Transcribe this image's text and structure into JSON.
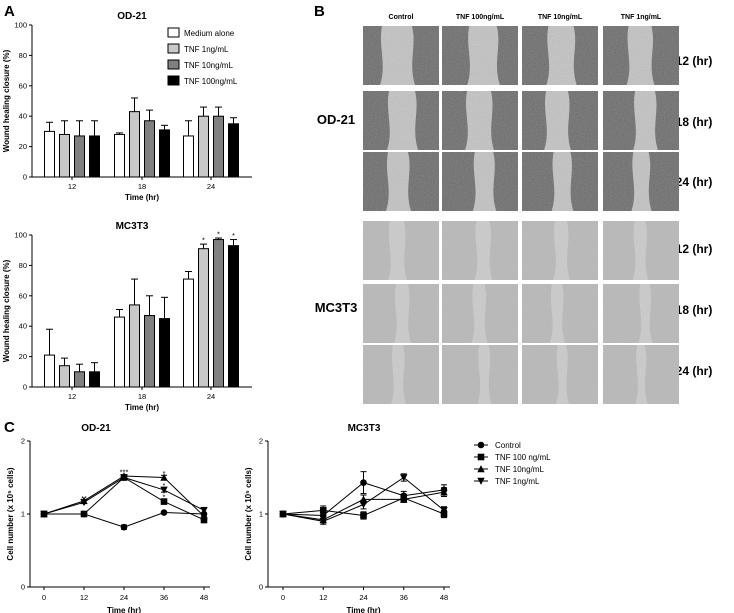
{
  "panels": {
    "a": "A",
    "b": "B",
    "c": "C"
  },
  "chart_data": [
    {
      "id": "a1",
      "type": "bar",
      "title": "OD-21",
      "xlabel": "Time (hr)",
      "ylabel": "Wound healing closure (%)",
      "ylim": [
        0,
        100
      ],
      "yticks": [
        0,
        20,
        40,
        60,
        80,
        100
      ],
      "categories": [
        "12",
        "18",
        "24"
      ],
      "series": [
        {
          "name": "Medium alone",
          "color": "#ffffff",
          "values": [
            30,
            28,
            27
          ],
          "err": [
            6,
            1,
            10
          ],
          "sig": [
            "",
            "",
            ""
          ]
        },
        {
          "name": "TNF 1ng/mL",
          "color": "#c8c8c8",
          "values": [
            28,
            43,
            40
          ],
          "err": [
            9,
            9,
            6
          ],
          "sig": [
            "",
            "",
            ""
          ]
        },
        {
          "name": "TNF 10ng/mL",
          "color": "#808080",
          "values": [
            27,
            37,
            40
          ],
          "err": [
            10,
            7,
            6
          ],
          "sig": [
            "",
            "",
            ""
          ]
        },
        {
          "name": "TNF 100ng/mL",
          "color": "#000000",
          "values": [
            27,
            31,
            35
          ],
          "err": [
            10,
            3,
            4
          ],
          "sig": [
            "",
            "",
            ""
          ]
        }
      ],
      "legend": "top-right"
    },
    {
      "id": "a2",
      "type": "bar",
      "title": "MC3T3",
      "xlabel": "Time (hr)",
      "ylabel": "Wound healing closure (%)",
      "ylim": [
        0,
        100
      ],
      "yticks": [
        0,
        20,
        40,
        60,
        80,
        100
      ],
      "categories": [
        "12",
        "18",
        "24"
      ],
      "series": [
        {
          "name": "Medium alone",
          "color": "#ffffff",
          "values": [
            21,
            46,
            71
          ],
          "err": [
            17,
            5,
            5
          ],
          "sig": [
            "",
            "",
            ""
          ]
        },
        {
          "name": "TNF 1ng/mL",
          "color": "#c8c8c8",
          "values": [
            14,
            54,
            91
          ],
          "err": [
            5,
            17,
            3
          ],
          "sig": [
            "",
            "",
            "*"
          ]
        },
        {
          "name": "TNF 10ng/mL",
          "color": "#808080",
          "values": [
            10,
            47,
            97
          ],
          "err": [
            5,
            13,
            1
          ],
          "sig": [
            "",
            "",
            "*"
          ]
        },
        {
          "name": "TNF 100ng/mL",
          "color": "#000000",
          "values": [
            10,
            45,
            93
          ],
          "err": [
            6,
            14,
            4
          ],
          "sig": [
            "",
            "",
            "*"
          ]
        }
      ]
    },
    {
      "id": "c1",
      "type": "line",
      "title": "OD-21",
      "xlabel": "Time (hr)",
      "ylabel": "Cell number (x 10⁵ cells)",
      "x": [
        0,
        12,
        24,
        36,
        48
      ],
      "ylim": [
        0,
        2
      ],
      "yticks": [
        0,
        1,
        2
      ],
      "series": [
        {
          "name": "Control",
          "marker": "circle",
          "values": [
            1.0,
            1.0,
            0.82,
            1.02,
            1.0
          ],
          "err": [
            0,
            0,
            0.03,
            0,
            0
          ]
        },
        {
          "name": "TNF 100 ng/mL",
          "marker": "square",
          "values": [
            1.0,
            1.0,
            1.5,
            1.17,
            0.92
          ],
          "err": [
            0,
            0,
            0,
            0.03,
            0.04
          ]
        },
        {
          "name": "TNF 10ng/mL",
          "marker": "triangle-up",
          "values": [
            1.0,
            1.18,
            1.52,
            1.5,
            0.97
          ],
          "err": [
            0,
            0,
            0,
            0.03,
            0
          ]
        },
        {
          "name": "TNF 1ng/mL",
          "marker": "triangle-down",
          "values": [
            1.0,
            1.16,
            1.5,
            1.33,
            1.05
          ],
          "err": [
            0,
            0,
            0,
            0.03,
            0.04
          ]
        }
      ],
      "annotations": [
        {
          "x": 12,
          "y": 1.22,
          "text": "**"
        },
        {
          "x": 24,
          "y": 1.58,
          "text": "***"
        },
        {
          "x": 36,
          "y": 1.56,
          "text": "*"
        },
        {
          "x": 36,
          "y": 1.4,
          "text": "*"
        },
        {
          "x": 36,
          "y": 1.24,
          "text": "*"
        }
      ]
    },
    {
      "id": "c2",
      "type": "line",
      "title": "MC3T3",
      "xlabel": "Time (hr)",
      "ylabel": "Cell number (x 10⁵ cells)",
      "x": [
        0,
        12,
        24,
        36,
        48
      ],
      "ylim": [
        0,
        2
      ],
      "yticks": [
        0,
        1,
        2
      ],
      "series": [
        {
          "name": "Control",
          "marker": "circle",
          "values": [
            1.0,
            0.98,
            1.43,
            1.25,
            1.33
          ],
          "err": [
            0,
            0.05,
            0.15,
            0.06,
            0.07
          ]
        },
        {
          "name": "TNF 100 ng/mL",
          "marker": "square",
          "values": [
            1.0,
            1.05,
            0.98,
            1.22,
            1.0
          ],
          "err": [
            0,
            0.06,
            0.05,
            0.05,
            0.05
          ]
        },
        {
          "name": "TNF 10ng/mL",
          "marker": "triangle-up",
          "values": [
            1.0,
            0.92,
            1.2,
            1.2,
            1.3
          ],
          "err": [
            0,
            0.04,
            0.06,
            0.04,
            0.06
          ]
        },
        {
          "name": "TNF 1ng/mL",
          "marker": "triangle-down",
          "values": [
            1.0,
            0.9,
            1.13,
            1.5,
            1.05
          ],
          "err": [
            0,
            0.04,
            0.06,
            0.05,
            0.05
          ]
        }
      ],
      "legend": "right"
    }
  ],
  "micrographs": {
    "columns": [
      "Control",
      "TNF 100ng/mL",
      "TNF 10ng/mL",
      "TNF 1ng/mL"
    ],
    "times": [
      "12 (hr)",
      "18 (hr)",
      "24 (hr)"
    ],
    "groups": [
      {
        "name": "OD-21",
        "background": "#6b6b6b",
        "gap": "#d2d2d2"
      },
      {
        "name": "MC3T3",
        "background": "#b9b9b9",
        "gap": "#d6d6d6"
      }
    ]
  }
}
